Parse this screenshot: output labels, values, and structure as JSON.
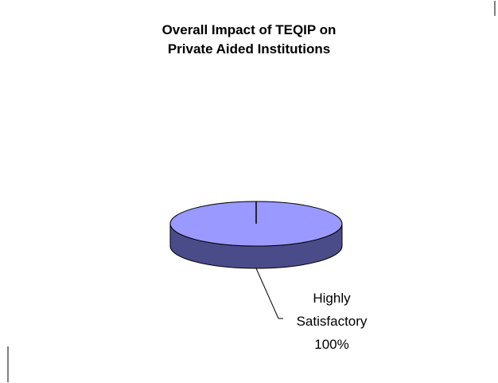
{
  "chart_data": {
    "type": "pie",
    "title_lines": [
      "Overall Impact of TEQIP on",
      "Private Aided Institutions"
    ],
    "slices": [
      {
        "label_lines": [
          "Highly",
          "Satisfactory",
          "100%"
        ],
        "value": 100,
        "color": "#9999FF",
        "side_color": "#4A4C8A"
      }
    ],
    "legend": "none",
    "is_3d": true
  }
}
